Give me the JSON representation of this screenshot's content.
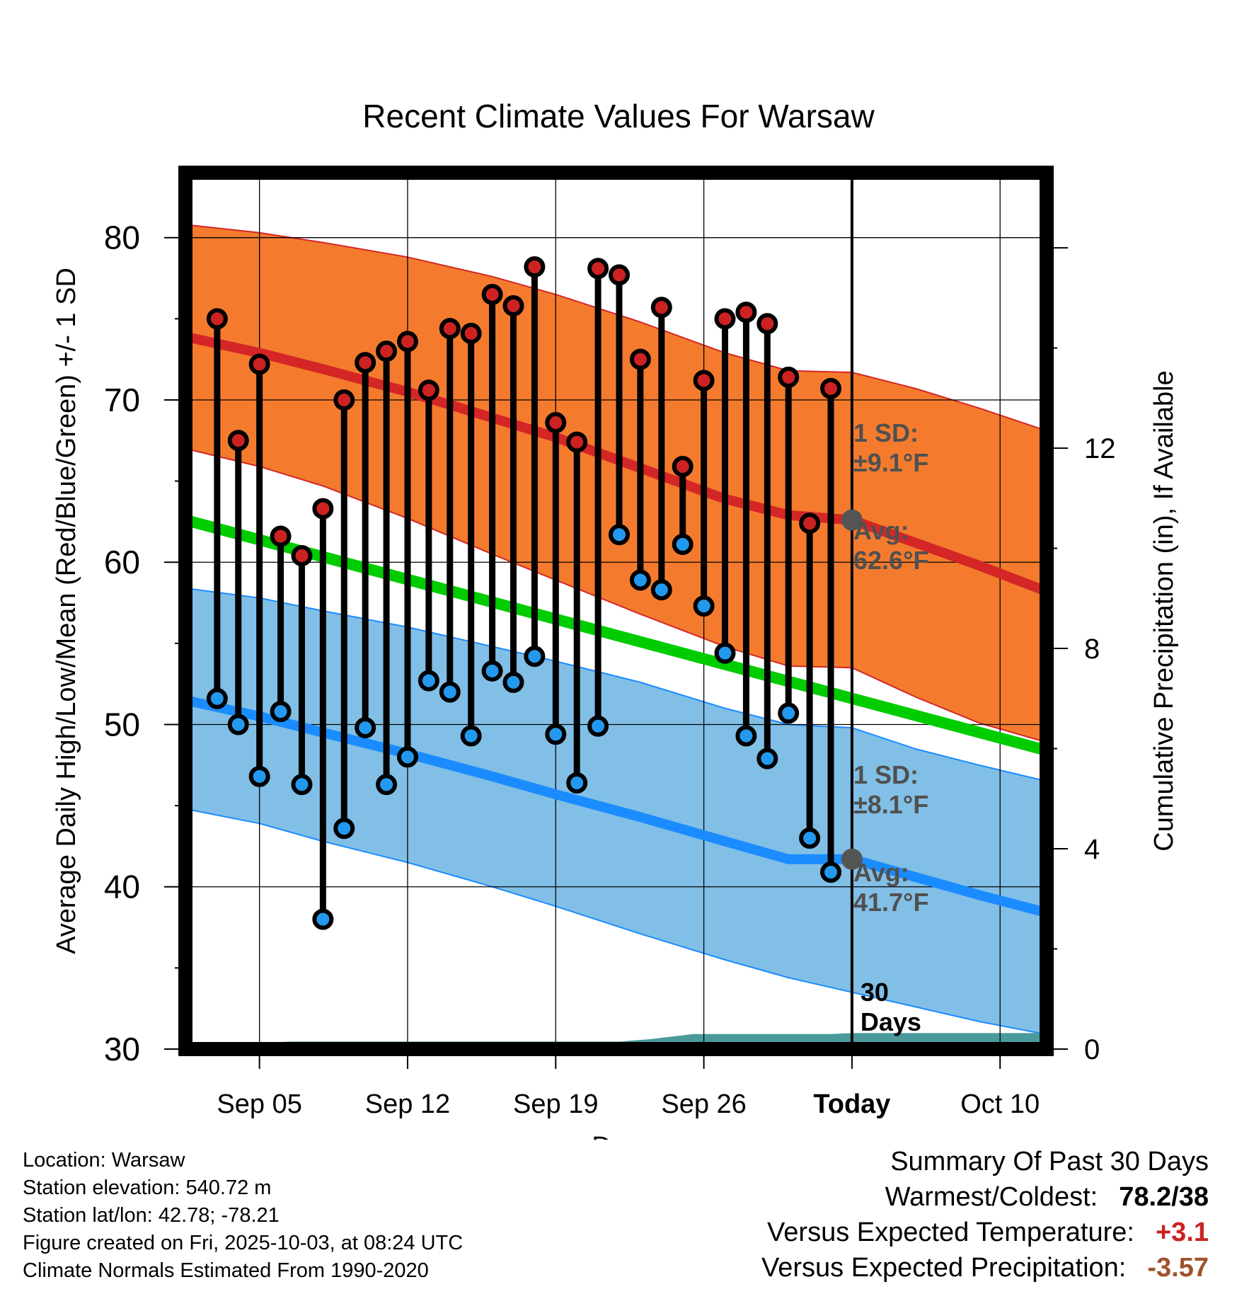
{
  "chart_data": {
    "type": "line",
    "title": "Recent Climate Values For Warsaw",
    "xlabel": "Day",
    "ylabel": "Average Daily High/Low/Mean (Red/Blue/Green) +/- 1 SD",
    "y2label": "Cumulative Precipitation (in), If Available",
    "ylim": [
      30,
      84
    ],
    "y2lim": [
      0,
      17.5
    ],
    "xlim": [
      -0.5,
      40.2
    ],
    "yticks": [
      30,
      40,
      50,
      60,
      70,
      80
    ],
    "y2ticks": [
      0,
      4,
      8,
      12
    ],
    "xticks": [
      {
        "day": 3,
        "label": "Sep 05"
      },
      {
        "day": 10,
        "label": "Sep 12"
      },
      {
        "day": 17,
        "label": "Sep 19"
      },
      {
        "day": 24,
        "label": "Sep 26"
      },
      {
        "day": 31,
        "label": "Today"
      },
      {
        "day": 38,
        "label": "Oct 10"
      }
    ],
    "today_day": 31,
    "today_label": "30 Days",
    "normal_high": {
      "x": [
        -0.5,
        3,
        6,
        10,
        14,
        17,
        21,
        25,
        28,
        31,
        34,
        37,
        40.2
      ],
      "mean": [
        73.9,
        72.9,
        71.9,
        70.5,
        68.9,
        67.7,
        65.8,
        63.9,
        62.9,
        62.6,
        61.2,
        59.8,
        58.2
      ],
      "upper": [
        80.8,
        80.3,
        79.7,
        78.8,
        77.6,
        76.5,
        74.8,
        72.9,
        71.8,
        71.7,
        70.7,
        69.5,
        68.1
      ],
      "lower": [
        67.0,
        65.9,
        64.7,
        62.7,
        60.5,
        58.9,
        56.8,
        54.8,
        53.6,
        53.5,
        51.7,
        50.1,
        48.9
      ]
    },
    "normal_mean": {
      "x": [
        -0.5,
        40.2
      ],
      "values": [
        62.6,
        48.4
      ]
    },
    "normal_low": {
      "x": [
        -0.5,
        3,
        6,
        10,
        14,
        17,
        21,
        25,
        28,
        31,
        34,
        37,
        40.2
      ],
      "mean": [
        51.5,
        50.5,
        49.5,
        48.2,
        46.8,
        45.7,
        44.3,
        42.8,
        41.7,
        41.7,
        40.6,
        39.5,
        38.4
      ],
      "upper": [
        58.4,
        57.8,
        57.0,
        56.0,
        54.8,
        53.9,
        52.6,
        51.0,
        50.0,
        49.8,
        48.5,
        47.5,
        46.5
      ],
      "lower": [
        44.8,
        43.9,
        42.8,
        41.5,
        40.0,
        38.8,
        37.1,
        35.5,
        34.4,
        33.5,
        32.6,
        31.7,
        30.9
      ]
    },
    "daily": {
      "x": [
        1,
        2,
        3,
        4,
        5,
        6,
        7,
        8,
        9,
        10,
        11,
        12,
        13,
        14,
        15,
        16,
        17,
        18,
        19,
        20,
        21,
        22,
        23,
        24,
        25,
        26,
        27,
        28,
        29,
        30
      ],
      "high": [
        75.0,
        67.5,
        72.2,
        61.6,
        60.4,
        63.3,
        70.0,
        72.3,
        73.0,
        73.6,
        70.6,
        74.4,
        74.1,
        76.5,
        75.8,
        78.2,
        68.6,
        67.4,
        78.1,
        77.7,
        72.5,
        75.7,
        65.9,
        71.2,
        75.0,
        75.4,
        74.7,
        71.4,
        62.4,
        70.7
      ],
      "low": [
        51.6,
        50.0,
        46.8,
        50.8,
        46.3,
        38.0,
        43.6,
        49.8,
        46.3,
        48.0,
        52.7,
        52.0,
        49.3,
        53.3,
        52.6,
        54.2,
        49.4,
        46.4,
        49.9,
        61.7,
        58.9,
        58.3,
        61.1,
        57.3,
        54.4,
        49.3,
        47.9,
        50.7,
        43.0,
        40.9
      ]
    },
    "precip_cumulative": {
      "x": [
        -0.5,
        1,
        1.8,
        4.5,
        20,
        21.5,
        23.5,
        30,
        31,
        40.2
      ],
      "values": [
        0.0,
        0.0,
        0.1,
        0.15,
        0.15,
        0.2,
        0.3,
        0.3,
        0.32,
        0.32
      ]
    },
    "annotations": {
      "high_sd": [
        "1 SD:",
        "±9.1°F"
      ],
      "high_avg": [
        "Avg:",
        "62.6°F"
      ],
      "low_sd": [
        "1 SD:",
        "±8.1°F"
      ],
      "low_avg": [
        "Avg:",
        "41.7°F"
      ],
      "high_avg_value": 62.6,
      "low_avg_value": 41.7
    },
    "colors": {
      "high_band": "#f47b2e",
      "high_line": "#d42626",
      "mean_line": "#00cc00",
      "low_band": "#82bfe6",
      "low_line": "#1a8cff",
      "precip": "#4a9a9c",
      "annotation": "#505050",
      "high_dot": "#cc2222",
      "low_dot": "#2299ee"
    }
  },
  "footer": {
    "location": "Location: Warsaw",
    "elevation": "Station elevation: 540.72 m",
    "latlon": "Station lat/lon: 42.78; -78.21",
    "created": "Figure created on Fri, 2025-10-03, at 08:24 UTC",
    "normals": "Climate Normals Estimated From 1990-2020"
  },
  "summary": {
    "title": "Summary Of Past 30 Days",
    "warmest_label": "Warmest/Coldest:",
    "warmest_value": "78.2/38",
    "temp_label": "Versus Expected Temperature:",
    "temp_value": "+3.1",
    "temp_color": "#cc2222",
    "precip_label": "Versus Expected Precipitation:",
    "precip_value": "-3.57",
    "precip_color": "#a0522d"
  }
}
